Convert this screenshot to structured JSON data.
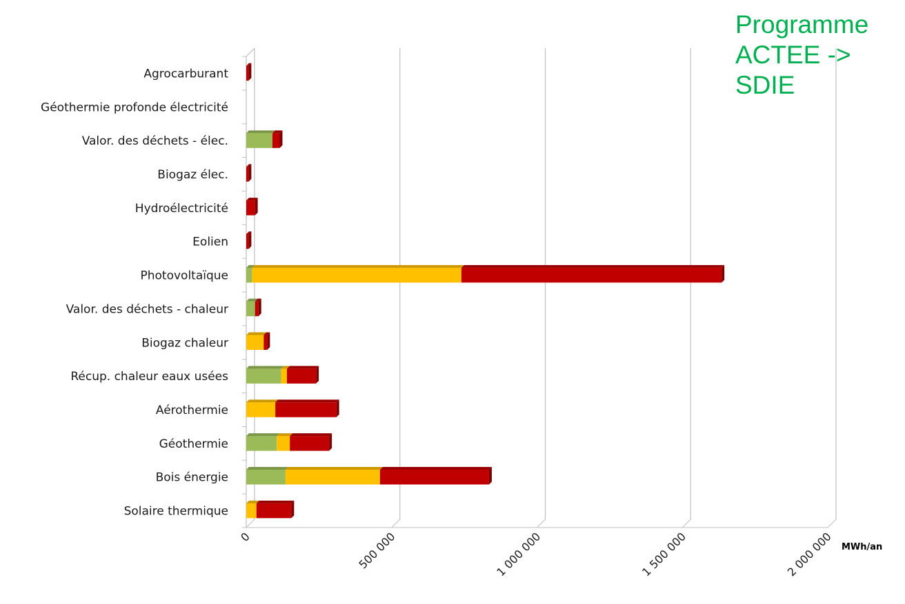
{
  "overlay_title": {
    "lines": [
      "Programme",
      "ACTEE ->",
      "SDIE"
    ],
    "color": "#00B050"
  },
  "chart_data": {
    "type": "bar",
    "orientation": "horizontal",
    "stacked": true,
    "three_d": true,
    "categories": [
      "Agrocarburant",
      "Géothermie profonde électricité",
      "Valor. des déchets - élec.",
      "Biogaz élec.",
      "Hydroélectricité",
      "Eolien",
      "Photovoltaïque",
      "Valor. des déchets - chaleur",
      "Biogaz chaleur",
      "Récup. chaleur eaux usées",
      "Aérothermie",
      "Géothermie",
      "Bois énergie",
      "Solaire thermique"
    ],
    "series": [
      {
        "color": "#9BBB59",
        "values": [
          0,
          0,
          90000,
          0,
          0,
          0,
          20000,
          30000,
          0,
          120000,
          0,
          105000,
          135000,
          0
        ]
      },
      {
        "color": "#FFC000",
        "values": [
          0,
          0,
          0,
          0,
          0,
          0,
          720000,
          0,
          60000,
          20000,
          100000,
          45000,
          325000,
          35000
        ]
      },
      {
        "color": "#C00000",
        "values": [
          8000,
          0,
          25000,
          8000,
          30000,
          8000,
          895000,
          12000,
          12000,
          100000,
          210000,
          135000,
          375000,
          120000
        ]
      }
    ],
    "x_ticks": [
      "0",
      "500 000",
      "1 000 000",
      "1 500 000",
      "2 000 000"
    ],
    "x_tick_values": [
      0,
      500000,
      1000000,
      1500000,
      2000000
    ],
    "xlim": [
      0,
      2000000
    ],
    "xlabel": "MWh/an",
    "grid": true,
    "legend": "none"
  }
}
